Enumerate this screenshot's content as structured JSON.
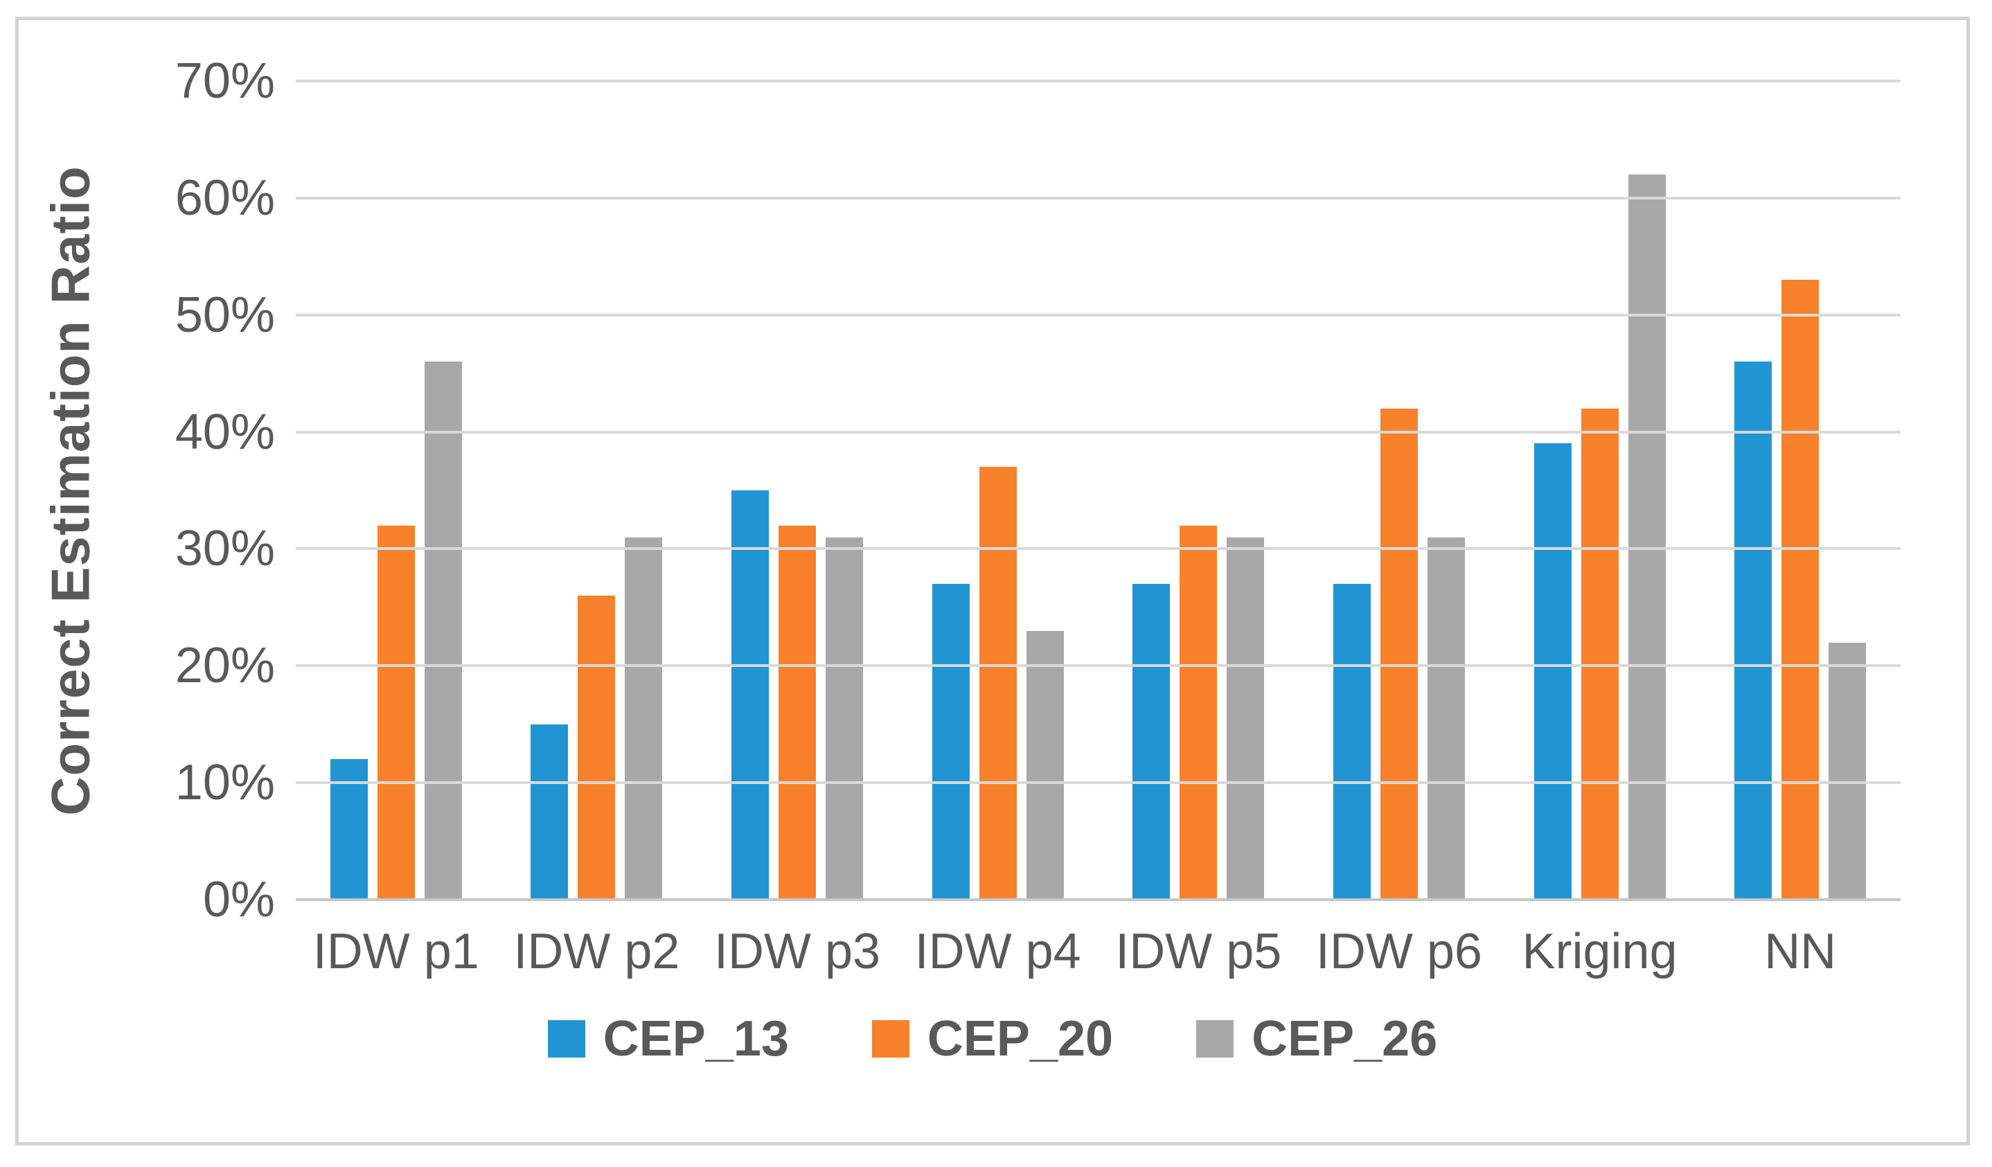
{
  "chart_data": {
    "type": "bar",
    "title": "",
    "ylabel": "Correct Estimation Ratio",
    "xlabel": "",
    "ylim": [
      0,
      70
    ],
    "grid": true,
    "legend_position": "bottom",
    "y_ticks": [
      {
        "value": 0,
        "label": "0%"
      },
      {
        "value": 10,
        "label": "10%"
      },
      {
        "value": 20,
        "label": "20%"
      },
      {
        "value": 30,
        "label": "30%"
      },
      {
        "value": 40,
        "label": "40%"
      },
      {
        "value": 50,
        "label": "50%"
      },
      {
        "value": 60,
        "label": "60%"
      },
      {
        "value": 70,
        "label": "70%"
      }
    ],
    "categories": [
      "IDW p1",
      "IDW p2",
      "IDW p3",
      "IDW p4",
      "IDW p5",
      "IDW p6",
      "Kriging",
      "NN"
    ],
    "series": [
      {
        "name": "CEP_13",
        "color": "#2195d3",
        "values": [
          12,
          15,
          35,
          27,
          27,
          27,
          39,
          46
        ]
      },
      {
        "name": "CEP_20",
        "color": "#f8812b",
        "values": [
          32,
          26,
          32,
          37,
          32,
          42,
          42,
          53
        ]
      },
      {
        "name": "CEP_26",
        "color": "#a8a8a8",
        "values": [
          46,
          31,
          31,
          23,
          31,
          31,
          62,
          22
        ]
      }
    ],
    "colors": {
      "tick_text": "#595959",
      "gridline": "#d9d9d9",
      "frame_border": "#d2d2d5"
    }
  }
}
